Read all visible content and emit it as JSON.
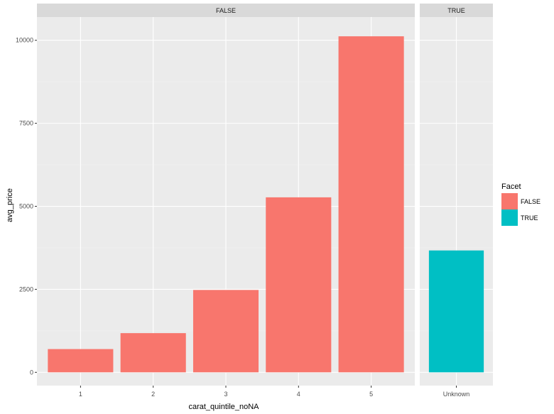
{
  "chart_data": {
    "type": "bar",
    "xlabel": "carat_quintile_noNA",
    "ylabel": "avg_price",
    "ylim": [
      -400,
      10700
    ],
    "yticks": [
      0,
      2500,
      5000,
      7500,
      10000
    ],
    "grid": true,
    "legend_position": "right",
    "legend": {
      "title": "Facet",
      "entries": [
        {
          "label": "FALSE",
          "color": "#F8766D"
        },
        {
          "label": "TRUE",
          "color": "#00BFC4"
        }
      ]
    },
    "panels": [
      {
        "strip": "FALSE",
        "fill": "#F8766D",
        "categories": [
          "1",
          "2",
          "3",
          "4",
          "5"
        ],
        "values": [
          700,
          1180,
          2480,
          5270,
          10120
        ]
      },
      {
        "strip": "TRUE",
        "fill": "#00BFC4",
        "categories": [
          "Unknown"
        ],
        "values": [
          3670
        ]
      }
    ]
  },
  "colors": {
    "panel_background": "#EBEBEB",
    "strip_background": "#D9D9D9",
    "grid_major": "#FFFFFF",
    "grid_minor": "#F2F2F2"
  }
}
